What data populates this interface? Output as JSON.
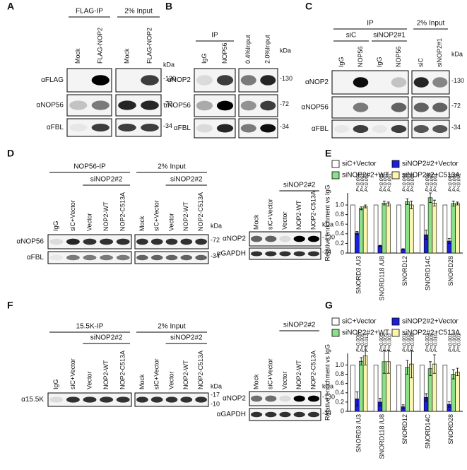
{
  "panel_labels": [
    "A",
    "B",
    "C",
    "D",
    "E",
    "F",
    "G"
  ],
  "panel_a": {
    "groups": [
      "FLAG-IP",
      "2% Input"
    ],
    "lanes": [
      "Mock",
      "FLAG-NOP2",
      "Mock",
      "FLAG-NOP2"
    ],
    "kda": "kDa",
    "rows": [
      {
        "antibody": "αFLAG",
        "markers": [
          "-130"
        ]
      },
      {
        "antibody": "αNOP56",
        "markers": [
          "-72"
        ]
      },
      {
        "antibody": "αFBL",
        "markers": [
          "-34"
        ]
      }
    ]
  },
  "panel_b": {
    "groups": [
      "IP"
    ],
    "lanes": [
      "IgG",
      "NOP56",
      "0.4%Input",
      "2.0%Input"
    ],
    "kda": "kDa",
    "rows": [
      {
        "antibody": "αNOP2",
        "markers": [
          "-130"
        ]
      },
      {
        "antibody": "αNOP56",
        "markers": [
          "-72"
        ]
      },
      {
        "antibody": "αFBL",
        "markers": [
          "-34"
        ]
      }
    ]
  },
  "panel_c": {
    "groups": [
      "IP",
      "2% Input"
    ],
    "subgroups": [
      "siC",
      "siNOP2#1"
    ],
    "lanes": [
      "IgG",
      "NOP56",
      "IgG",
      "NOP56",
      "siC",
      "siNOP2#1"
    ],
    "kda": "kDa",
    "rows": [
      {
        "antibody": "αNOP2",
        "markers": [
          "-130"
        ]
      },
      {
        "antibody": "αNOP56",
        "markers": [
          "-72"
        ]
      },
      {
        "antibody": "αFBL",
        "markers": [
          "-34"
        ]
      }
    ]
  },
  "panel_d": {
    "ip": {
      "groups": [
        "NOP56-IP",
        "2% Input"
      ],
      "subgroups": [
        "siNOP2#2",
        "siNOP2#2"
      ],
      "lanes": [
        "IgG",
        "siC+Vector",
        "Vector",
        "NOP2-WT",
        "NOP2-C513A",
        "Mock",
        "siC+Vector",
        "Vector",
        "NOP2-WT",
        "NOP2-C513A"
      ],
      "kda": "kDa",
      "rows": [
        {
          "antibody": "αNOP56",
          "markers": [
            "-72"
          ]
        },
        {
          "antibody": "αFBL",
          "markers": [
            "-34"
          ]
        }
      ]
    },
    "knockdown": {
      "subgroups": [
        "siNOP2#2"
      ],
      "lanes": [
        "Mock",
        "siC+Vector",
        "Vector",
        "NOP2-WT",
        "NOP2-C513A"
      ],
      "kda": "kDa",
      "rows": [
        {
          "antibody": "αNOP2",
          "markers": [
            "-130"
          ]
        },
        {
          "antibody": "αGAPDH",
          "markers": [
            "-34"
          ]
        }
      ]
    }
  },
  "panel_f": {
    "ip": {
      "groups": [
        "15.5K-IP",
        "2% Input"
      ],
      "subgroups": [
        "siNOP2#2",
        "siNOP2#2"
      ],
      "lanes": [
        "IgG",
        "siC+Vector",
        "Vector",
        "NOP2-WT",
        "NOP2-C513A",
        "Mock",
        "siC+Vector",
        "Vector",
        "NOP2-WT",
        "NOP2-C513A"
      ],
      "kda": "kDa",
      "rows": [
        {
          "antibody": "α15.5K",
          "markers": [
            "-17",
            "-10"
          ]
        }
      ]
    },
    "knockdown": {
      "subgroups": [
        "siNOP2#2"
      ],
      "lanes": [
        "Mock",
        "siC+Vector",
        "Vector",
        "NOP2-WT",
        "NOP2-C513A"
      ],
      "kda": "kDa",
      "rows": [
        {
          "antibody": "αNOP2",
          "markers": [
            "-130"
          ]
        },
        {
          "antibody": "αGAPDH",
          "markers": [
            "-34"
          ]
        }
      ]
    }
  },
  "chart_data": [
    {
      "type": "bar",
      "ylabel": "Relative enrichment vs IgG",
      "categories": [
        "SNORD3 /U3",
        "SNORD118 /U8",
        "SNORD12",
        "SNORD14C",
        "SNORD28"
      ],
      "series": [
        {
          "name": "siC+Vector",
          "color": "#ffffff",
          "values": [
            1,
            1,
            1,
            1,
            1
          ]
        },
        {
          "name": "siNOP2#2+Vector",
          "color": "#1f1fd6",
          "values": [
            0.42,
            0.15,
            0.08,
            0.38,
            0.25
          ],
          "errors": [
            0.03,
            0.01,
            0.01,
            0.1,
            0.05
          ]
        },
        {
          "name": "siNOP2#2+WT",
          "color": "#8de08a",
          "values": [
            0.93,
            1.04,
            1.07,
            1.15,
            1.03
          ],
          "errors": [
            0.03,
            0.04,
            0.06,
            0.1,
            0.05
          ]
        },
        {
          "name": "siNOP2#2+C513A",
          "color": "#fbf5b0",
          "values": [
            0.97,
            1.02,
            1.0,
            1.04,
            1.03
          ],
          "errors": [
            0.03,
            0.04,
            0.08,
            0.06,
            0.03
          ]
        }
      ],
      "p_values": [
        [
          "P<0.001",
          "P<0.001",
          "P<0.001"
        ],
        [
          "P<0.001",
          "P<0.001",
          "P<0.001"
        ],
        [
          "P<0.001",
          "P<0.001",
          "P<0.001"
        ],
        [
          "P<0.001",
          "P<0.001",
          "P<0.001"
        ],
        [
          "P<0.001",
          "P<0.001",
          "P<0.001"
        ]
      ],
      "ylim": [
        0,
        1.25
      ],
      "yticks": [
        0,
        0.2,
        0.4,
        0.6,
        0.8,
        {
          "value": 1,
          "label": "1.0"
        }
      ],
      "legend": "top"
    },
    {
      "type": "bar",
      "ylabel": "Relative enrichment vs IgG",
      "categories": [
        "SNORD3 /U3",
        "SNORD118 /U8",
        "SNORD12",
        "SNORD14C",
        "SNORD28"
      ],
      "series": [
        {
          "name": "siC+Vector",
          "color": "#ffffff",
          "values": [
            1,
            1,
            1,
            1,
            1
          ]
        },
        {
          "name": "siNOP2#2+Vector",
          "color": "#1f1fd6",
          "values": [
            0.27,
            0.2,
            0.1,
            0.3,
            0.15
          ],
          "errors": [
            0.15,
            0.08,
            0.04,
            0.08,
            0.06
          ]
        },
        {
          "name": "siNOP2#2+WT",
          "color": "#8de08a",
          "values": [
            1.08,
            1.07,
            0.95,
            0.92,
            0.8
          ],
          "errors": [
            0.08,
            0.25,
            0.15,
            0.15,
            0.1
          ]
        },
        {
          "name": "siNOP2#2+C513A",
          "color": "#fbf5b0",
          "values": [
            1.2,
            1.07,
            1.02,
            1.02,
            0.85
          ],
          "errors": [
            0.2,
            0.25,
            0.3,
            0.2,
            0.08
          ]
        }
      ],
      "p_values": [
        [
          "P=0.006",
          "P=0.005",
          "P=0.012"
        ],
        [
          "P=0.005",
          "P=0.005",
          "P=0.003"
        ],
        [
          "P<0.001",
          "P=0.002",
          "P=0.008"
        ],
        [
          "P<0.001",
          "P=0.005",
          "P=0.010"
        ],
        [
          "P<0.001",
          "P=0.002",
          "P=0.001"
        ]
      ],
      "ylim": [
        0,
        1.25
      ],
      "yticks": [
        0,
        0.2,
        0.4,
        0.6,
        0.8,
        {
          "value": 1,
          "label": "1.0"
        }
      ],
      "legend": "top"
    }
  ]
}
